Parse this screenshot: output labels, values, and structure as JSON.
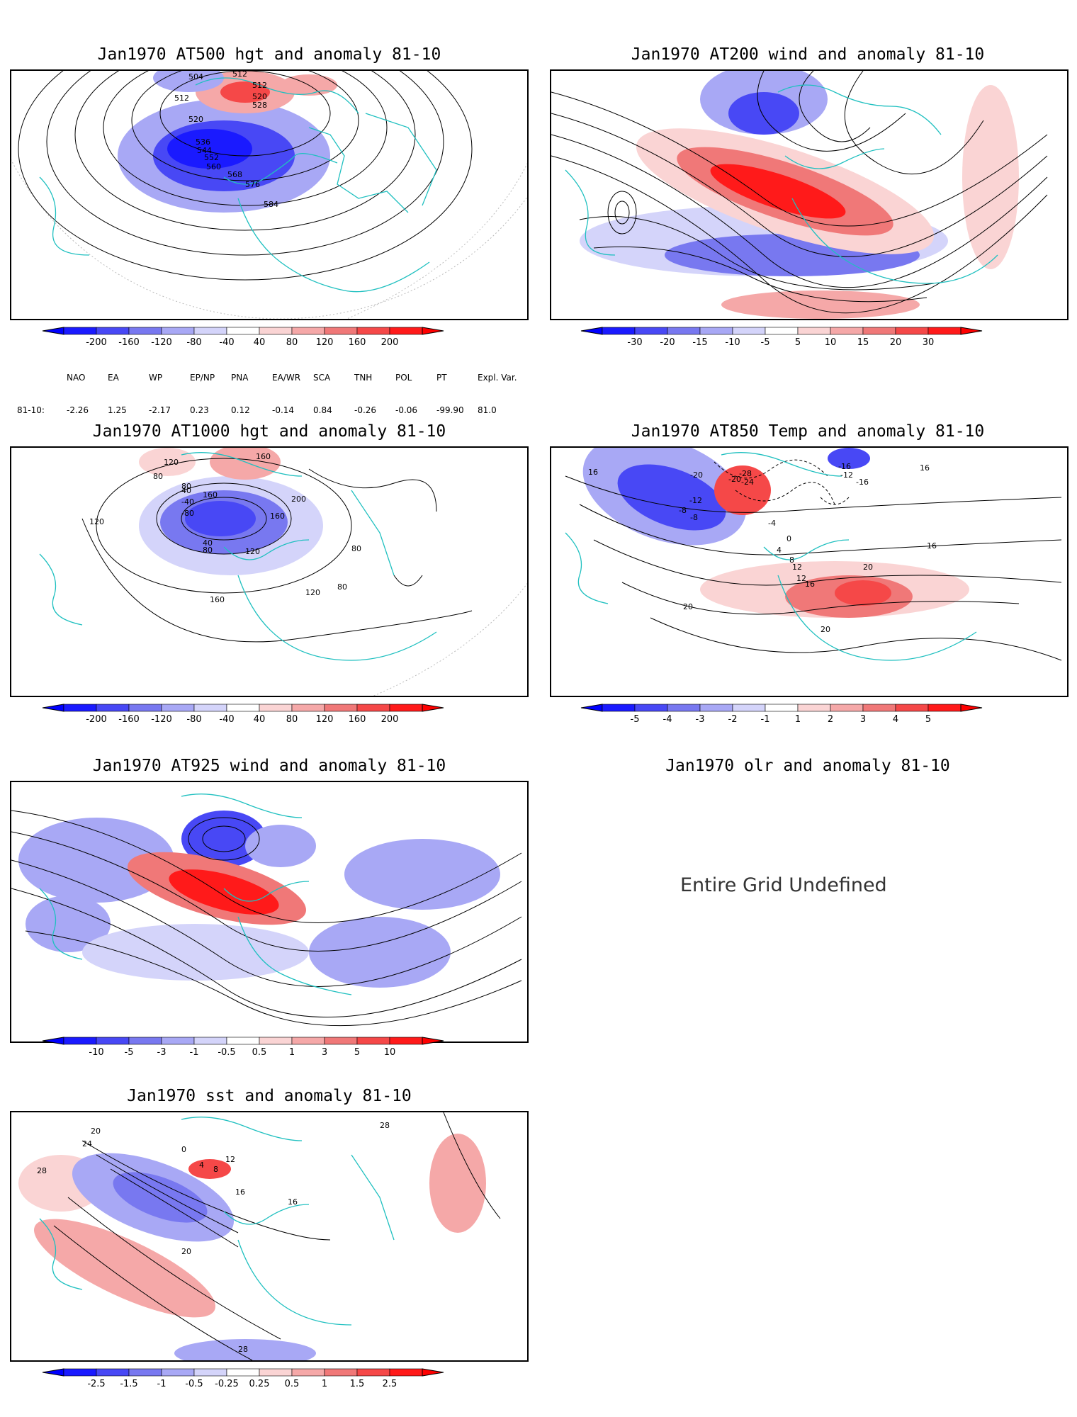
{
  "panels": [
    {
      "id": "p1",
      "title": "Jan1970 AT500 hgt and anomaly 81-10",
      "colorbar": {
        "labels": [
          "-200",
          "-160",
          "-120",
          "-80",
          "-40",
          "40",
          "80",
          "120",
          "160",
          "200"
        ]
      },
      "contour_labels": [
        "512",
        "504",
        "512",
        "520",
        "528",
        "512",
        "520",
        "536",
        "544",
        "552",
        "560",
        "568",
        "576",
        "584"
      ]
    },
    {
      "id": "p2",
      "title": "Jan1970 AT200 wind and anomaly 81-10",
      "colorbar": {
        "labels": [
          "-30",
          "-20",
          "-15",
          "-10",
          "-5",
          "5",
          "10",
          "15",
          "20",
          "30"
        ]
      },
      "contour_labels": []
    },
    {
      "id": "p3",
      "title": "Jan1970 AT1000 hgt and anomaly 81-10",
      "colorbar": {
        "labels": [
          "-200",
          "-160",
          "-120",
          "-80",
          "-40",
          "40",
          "80",
          "120",
          "160",
          "200"
        ]
      },
      "contour_labels": [
        "120",
        "160",
        "80",
        "80",
        "160",
        "40",
        "-40",
        "-80",
        "40",
        "80",
        "120",
        "200",
        "160",
        "120",
        "80",
        "80",
        "160",
        "120"
      ]
    },
    {
      "id": "p4",
      "title": "Jan1970 AT850 Temp and anomaly 81-10",
      "colorbar": {
        "labels": [
          "-5",
          "-4",
          "-3",
          "-2",
          "-1",
          "1",
          "2",
          "3",
          "4",
          "5"
        ]
      },
      "contour_labels": [
        "16",
        "-20",
        "-28",
        "-24",
        "-20",
        "-16",
        "-12",
        "-16",
        "-12",
        "-8",
        "-8",
        "-4",
        "0",
        "4",
        "8",
        "12",
        "12",
        "16",
        "20",
        "20",
        "20",
        "16",
        "16"
      ]
    },
    {
      "id": "p5",
      "title": "Jan1970 AT925 wind and anomaly 81-10",
      "colorbar": {
        "labels": [
          "-10",
          "-5",
          "-3",
          "-1",
          "-0.5",
          "0.5",
          "1",
          "3",
          "5",
          "10"
        ]
      },
      "contour_labels": []
    },
    {
      "id": "p6",
      "title": "Jan1970 olr and anomaly 81-10",
      "message": "Entire Grid Undefined"
    },
    {
      "id": "p7",
      "title": "Jan1970 sst and anomaly 81-10",
      "colorbar": {
        "labels": [
          "-2.5",
          "-1.5",
          "-1",
          "-0.5",
          "-0.25",
          "0.25",
          "0.5",
          "1",
          "1.5",
          "2.5"
        ]
      },
      "contour_labels": [
        "20",
        "24",
        "28",
        "0",
        "4",
        "8",
        "12",
        "16",
        "20",
        "28",
        "28",
        "16"
      ]
    }
  ],
  "teleconnections": {
    "headers": [
      "NAO",
      "EA",
      "WP",
      "EP/NP",
      "PNA",
      "EA/WR",
      "SCA",
      "TNH",
      "POL",
      "PT",
      "Expl. Var."
    ],
    "row_label": "81-10:",
    "values": [
      "-2.26",
      "1.25",
      "-2.17",
      "0.23",
      "0.12",
      "-0.14",
      "0.84",
      "-0.26",
      "-0.06",
      "-99.90",
      "81.0"
    ]
  },
  "colors": {
    "neg": [
      "#1a1aff",
      "#4848f5",
      "#7878f0",
      "#a8a8f5",
      "#d4d4fa"
    ],
    "pos": [
      "#fad4d4",
      "#f5a8a8",
      "#f07878",
      "#f54848",
      "#ff1a1a"
    ],
    "coast": "#20c0c0"
  }
}
